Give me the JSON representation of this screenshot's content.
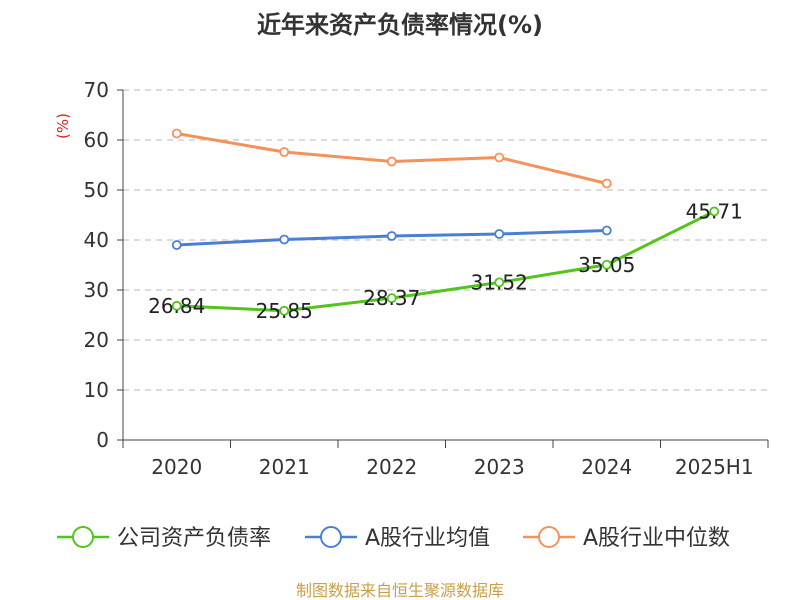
{
  "chart_data": {
    "type": "line",
    "title": "近年来资产负债率情况(%)",
    "ylabel": "(%)",
    "xlabel": "",
    "categories": [
      "2020",
      "2021",
      "2022",
      "2023",
      "2024",
      "2025H1"
    ],
    "ylim": [
      0,
      70
    ],
    "yticks": [
      0,
      10,
      20,
      30,
      40,
      50,
      60,
      70
    ],
    "grid": true,
    "legend_position": "bottom",
    "series": [
      {
        "name": "公司资产负债率",
        "color": "#52c41a",
        "values": [
          26.84,
          25.85,
          28.37,
          31.52,
          35.05,
          45.71
        ],
        "labels": [
          "26.84",
          "25.85",
          "28.37",
          "31.52",
          "35.05",
          "45.71"
        ],
        "show_labels": true
      },
      {
        "name": "A股行业均值",
        "color": "#4a7fd4",
        "values": [
          39.0,
          40.1,
          40.8,
          41.2,
          41.9,
          null
        ],
        "show_labels": false
      },
      {
        "name": "A股行业中位数",
        "color": "#f5915a",
        "values": [
          61.3,
          57.6,
          55.7,
          56.5,
          51.3,
          null
        ],
        "show_labels": false
      }
    ]
  },
  "footer": {
    "source": "制图数据来自恒生聚源数据库"
  }
}
